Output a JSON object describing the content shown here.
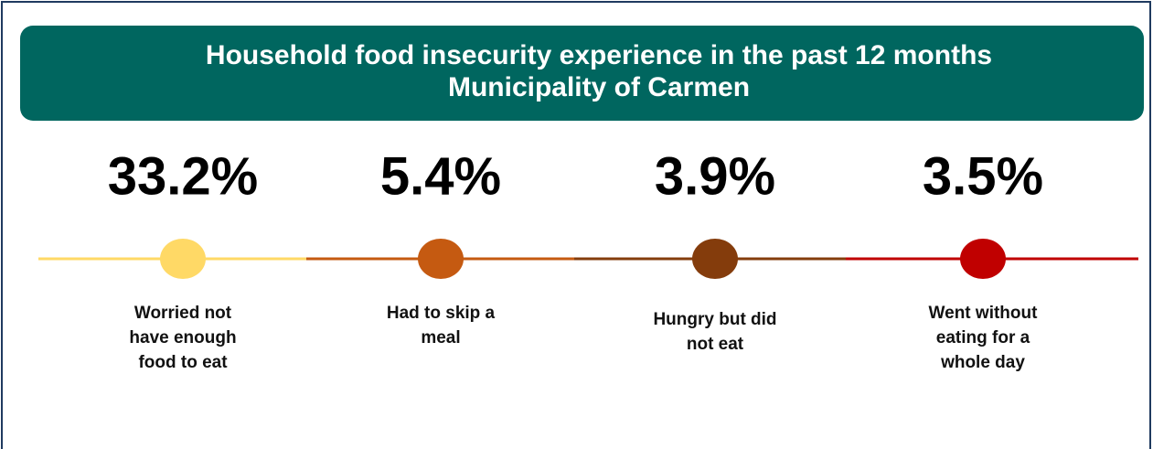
{
  "header": {
    "title": [
      "Household food insecurity experience in the past 12 months",
      "Municipality of Carmen"
    ]
  },
  "items": [
    {
      "value": "33.2%",
      "label": [
        "Worried not",
        "have enough",
        "food to eat"
      ],
      "color": "#ffd966"
    },
    {
      "value": "5.4%",
      "label": [
        "Had to skip a",
        "meal"
      ],
      "color": "#c55a11"
    },
    {
      "value": "3.9%",
      "label": [
        "Hungry but did",
        "not eat"
      ],
      "color": "#843c0c"
    },
    {
      "value": "3.5%",
      "label": [
        "Went without",
        "eating for a",
        "whole day"
      ],
      "color": "#c00000"
    }
  ]
}
